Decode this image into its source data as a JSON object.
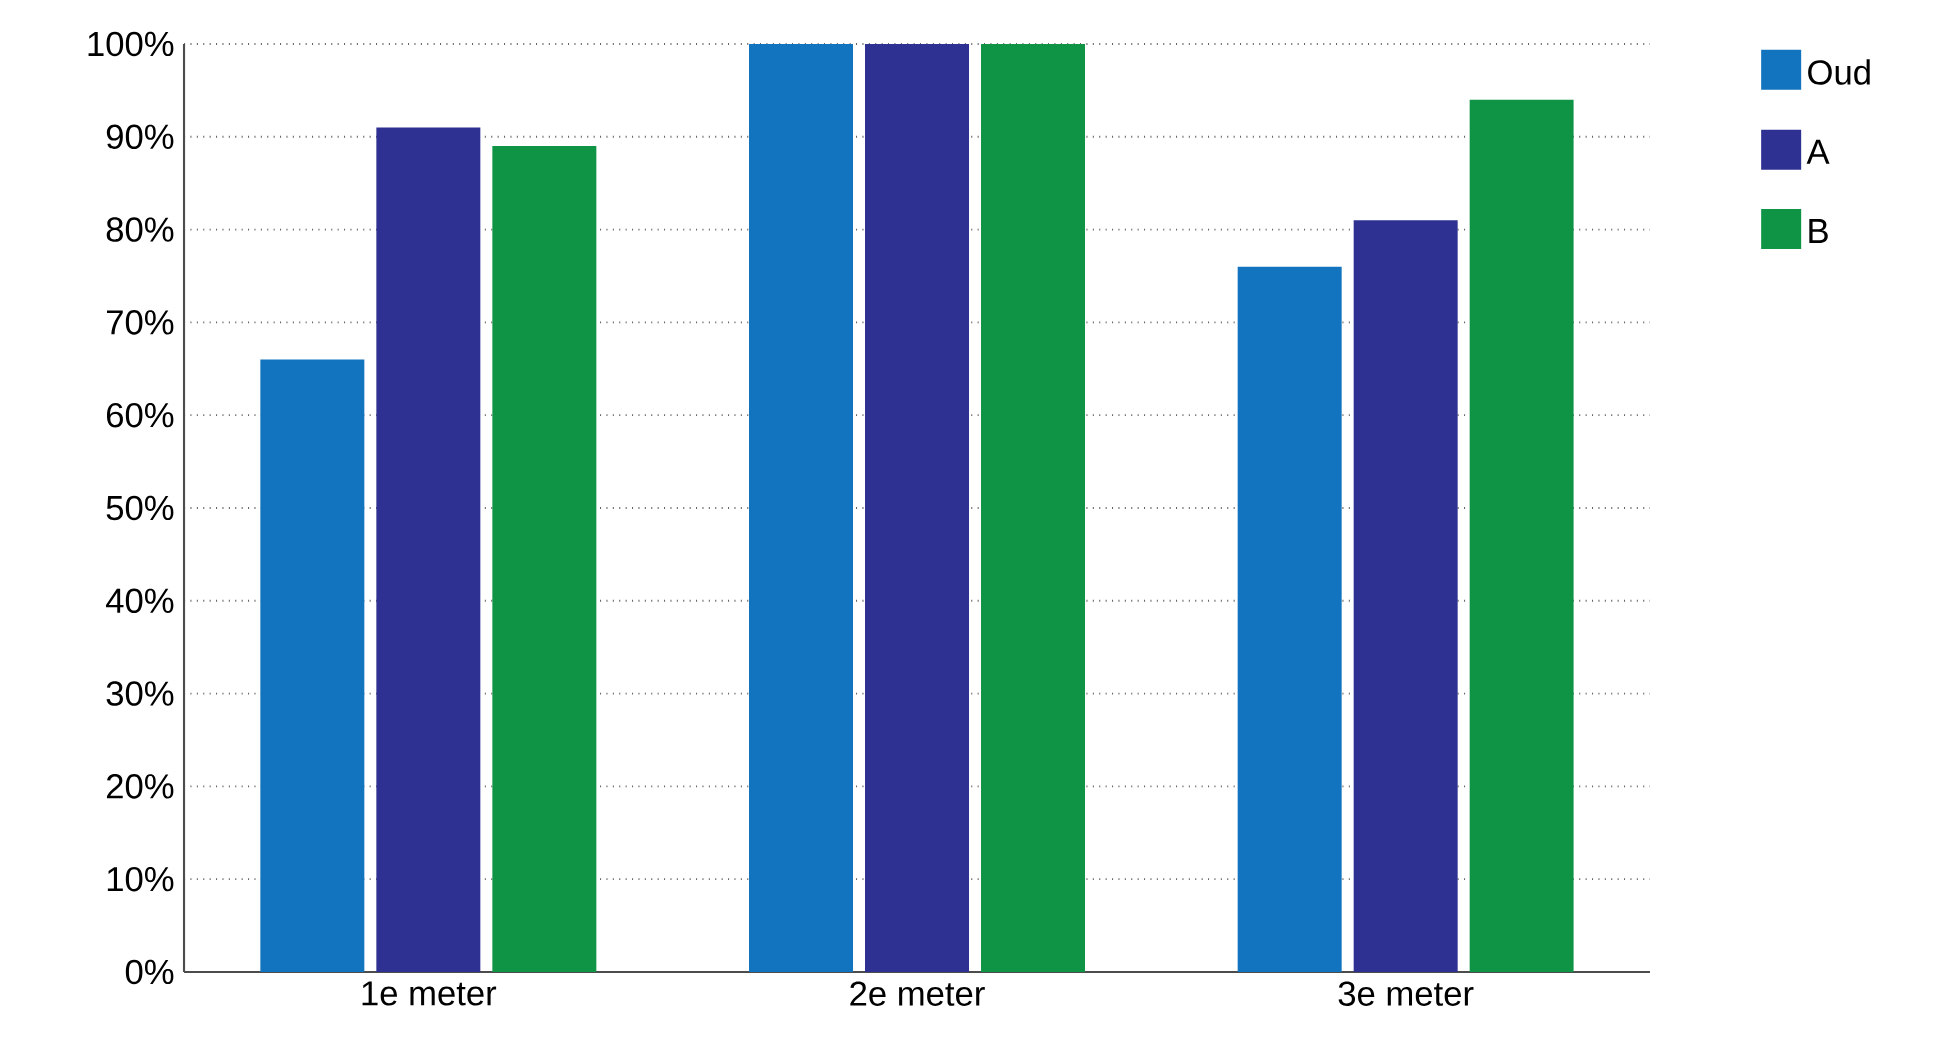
{
  "chart_data": {
    "type": "bar",
    "categories": [
      "1e meter",
      "2e meter",
      "3e meter"
    ],
    "series": [
      {
        "name": "Oud",
        "color": "#1273be",
        "values": [
          66,
          100,
          76
        ]
      },
      {
        "name": "A",
        "color": "#2e3192",
        "values": [
          91,
          100,
          81
        ]
      },
      {
        "name": "B",
        "color": "#0e9444",
        "values": [
          89,
          100,
          94
        ]
      }
    ],
    "ylim": [
      0,
      100
    ],
    "yticks": [
      {
        "value": 0,
        "label": "0%"
      },
      {
        "value": 10,
        "label": "10%"
      },
      {
        "value": 20,
        "label": "20%"
      },
      {
        "value": 30,
        "label": "30%"
      },
      {
        "value": 40,
        "label": "40%"
      },
      {
        "value": 50,
        "label": "50%"
      },
      {
        "value": 60,
        "label": "60%"
      },
      {
        "value": 70,
        "label": "70%"
      },
      {
        "value": 80,
        "label": "80%"
      },
      {
        "value": 90,
        "label": "90%"
      },
      {
        "value": 100,
        "label": "100%"
      }
    ],
    "grid": "y",
    "legend": "top right"
  }
}
